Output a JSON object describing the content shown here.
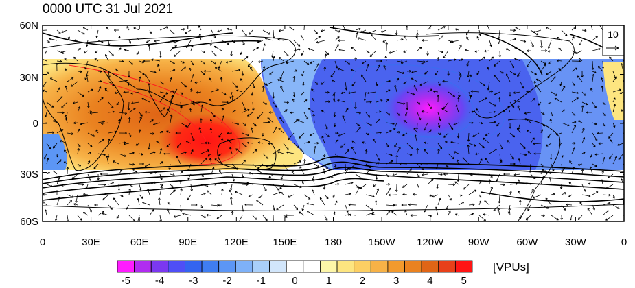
{
  "title": "0000 UTC 31 Jul 2021",
  "lat_labels": [
    "60N",
    "30N",
    "0",
    "30S",
    "60S"
  ],
  "lon_labels": [
    "0",
    "30E",
    "60E",
    "90E",
    "120E",
    "150E",
    "180",
    "150W",
    "120W",
    "90W",
    "60W",
    "30W",
    "0"
  ],
  "reference_vector": {
    "label": "10"
  },
  "colorbar": {
    "tick_labels": [
      "-5",
      "-4",
      "-3",
      "-2",
      "-1",
      "0",
      "1",
      "2",
      "3",
      "4",
      "5"
    ],
    "units": "[VPUs]",
    "colors": [
      "#ff1cff",
      "#b02cf0",
      "#7b38f0",
      "#4f4ff6",
      "#3464f0",
      "#3f7df2",
      "#5c96f5",
      "#7eb1f8",
      "#a9cffa",
      "#d2e6fb",
      "#ffffff",
      "#ffffff",
      "#fdf6a8",
      "#fde580",
      "#fccf63",
      "#f7b247",
      "#f29a2d",
      "#ea8220",
      "#e06516",
      "#e8401a",
      "#ff1414"
    ]
  },
  "colors": {
    "coastline": "#000000",
    "positive_contour": "#ff2020",
    "negative_contour": "#3a6df0"
  }
}
